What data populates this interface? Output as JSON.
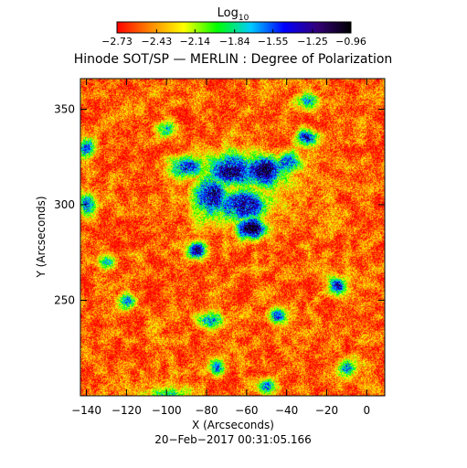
{
  "chart_data": {
    "type": "heatmap",
    "title": "Hinode SOT/SP — MERLIN : Degree of Polarization",
    "xlabel": "X (Arcseconds)",
    "ylabel": "Y (Arcseconds)",
    "timestamp": "20−Feb−2017 00:31:05.166",
    "xlim": [
      -143,
      9
    ],
    "ylim": [
      200,
      366
    ],
    "x_ticks": [
      -140,
      -120,
      -100,
      -80,
      -60,
      -40,
      -20,
      0
    ],
    "x_tick_labels": [
      "−140",
      "−120",
      "−100",
      "−80",
      "−60",
      "−40",
      "−20",
      "0"
    ],
    "y_ticks": [
      250,
      300,
      350
    ],
    "y_tick_labels": [
      "250",
      "300",
      "350"
    ],
    "colorbar": {
      "label_base": "Log",
      "label_sub": "10",
      "min": -2.73,
      "max": -0.96,
      "ticks": [
        -2.73,
        -2.43,
        -2.14,
        -1.84,
        -1.55,
        -1.25,
        -0.96
      ],
      "tick_labels": [
        "−2.73",
        "−2.43",
        "−2.14",
        "−1.84",
        "−1.55",
        "−1.25",
        "−0.96"
      ],
      "colors": [
        "#ff0000",
        "#ff8800",
        "#ffff00",
        "#00ff00",
        "#00ccff",
        "#0000ff",
        "#330077",
        "#000000"
      ]
    },
    "background_level": -2.55,
    "features": [
      {
        "x": -68,
        "y": 318,
        "sx": 8,
        "sy": 6,
        "level": -1.1
      },
      {
        "x": -52,
        "y": 318,
        "sx": 7,
        "sy": 6,
        "level": -1.05
      },
      {
        "x": -62,
        "y": 300,
        "sx": 9,
        "sy": 6,
        "level": -1.2
      },
      {
        "x": -58,
        "y": 288,
        "sx": 5,
        "sy": 4,
        "level": -1.0
      },
      {
        "x": -78,
        "y": 305,
        "sx": 6,
        "sy": 8,
        "level": -1.25
      },
      {
        "x": -90,
        "y": 320,
        "sx": 6,
        "sy": 4,
        "level": -1.4
      },
      {
        "x": -40,
        "y": 322,
        "sx": 5,
        "sy": 4,
        "level": -1.5
      },
      {
        "x": -30,
        "y": 335,
        "sx": 4,
        "sy": 3,
        "level": -1.3
      },
      {
        "x": -85,
        "y": 276,
        "sx": 3,
        "sy": 3,
        "level": -1.1
      },
      {
        "x": -140,
        "y": 330,
        "sx": 3,
        "sy": 4,
        "level": -1.5
      },
      {
        "x": -140,
        "y": 300,
        "sx": 3,
        "sy": 4,
        "level": -1.6
      },
      {
        "x": -100,
        "y": 340,
        "sx": 3,
        "sy": 3,
        "level": -1.7
      },
      {
        "x": -30,
        "y": 355,
        "sx": 4,
        "sy": 3,
        "level": -1.7
      },
      {
        "x": -15,
        "y": 258,
        "sx": 3,
        "sy": 3,
        "level": -1.4
      },
      {
        "x": -78,
        "y": 240,
        "sx": 5,
        "sy": 3,
        "level": -1.6
      },
      {
        "x": -100,
        "y": 200,
        "sx": 8,
        "sy": 4,
        "level": -1.7
      },
      {
        "x": -45,
        "y": 242,
        "sx": 3,
        "sy": 3,
        "level": -1.6
      },
      {
        "x": -10,
        "y": 215,
        "sx": 3,
        "sy": 3,
        "level": -1.5
      },
      {
        "x": -120,
        "y": 250,
        "sx": 3,
        "sy": 3,
        "level": -1.7
      },
      {
        "x": -75,
        "y": 215,
        "sx": 3,
        "sy": 3,
        "level": -1.6
      },
      {
        "x": -50,
        "y": 205,
        "sx": 3,
        "sy": 3,
        "level": -1.5
      },
      {
        "x": -130,
        "y": 270,
        "sx": 3,
        "sy": 3,
        "level": -1.8
      }
    ]
  }
}
